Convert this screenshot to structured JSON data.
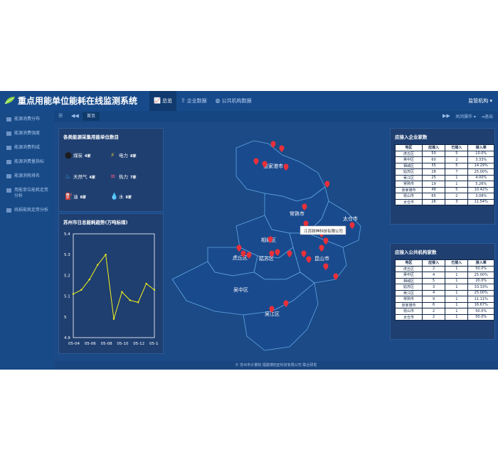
{
  "header": {
    "title": "重点用能单位能耗在线监测系统",
    "nav": [
      {
        "label": "总览",
        "icon": "chart-icon",
        "active": true
      },
      {
        "label": "企业数据",
        "icon": "upload-icon",
        "active": false
      },
      {
        "label": "公共机构数据",
        "icon": "globe-icon",
        "active": false
      }
    ],
    "user_label": "监管机构"
  },
  "sidebar": {
    "items": [
      {
        "label": "能源消费分布"
      },
      {
        "label": "能源消费强度"
      },
      {
        "label": "能源消费构成"
      },
      {
        "label": "能源消费量指标"
      },
      {
        "label": "能源消耗排名"
      },
      {
        "label": "用能单位能耗走势分析"
      },
      {
        "label": "线损能耗走势分析"
      }
    ]
  },
  "toolbar": {
    "home_tab": "首页",
    "close_ops": "关闭操作",
    "logout": "退出"
  },
  "energy_panel": {
    "title": "各类能源采集用能单位数目",
    "items": [
      {
        "name": "煤炭",
        "count": "4家",
        "icon": "coal-icon"
      },
      {
        "name": "电力",
        "count": "8家",
        "icon": "lightning-icon"
      },
      {
        "name": "天然气",
        "count": "4家",
        "icon": "gas-icon"
      },
      {
        "name": "热力",
        "count": "7家",
        "icon": "heat-icon"
      },
      {
        "name": "油",
        "count": "8家",
        "icon": "oil-icon"
      },
      {
        "name": "水",
        "count": "8家",
        "icon": "water-icon"
      }
    ]
  },
  "trend_panel": {
    "title": "苏州市日总能耗趋势(万吨标煤)"
  },
  "chart_data": {
    "type": "line",
    "title": "苏州市日总能耗趋势(万吨标煤)",
    "x": [
      "05-04",
      "05-05",
      "05-06",
      "05-07",
      "05-08",
      "05-09",
      "05-10",
      "05-11",
      "05-12",
      "05-13",
      "05-14"
    ],
    "series": [
      {
        "values": [
          5.11,
          5.13,
          5.18,
          5.25,
          5.3,
          4.99,
          5.12,
          5.08,
          5.07,
          5.16,
          5.13
        ]
      }
    ],
    "xticks": [
      "05-04",
      "05-06",
      "05-08",
      "05-10",
      "05-12",
      "05-14"
    ],
    "yticks": [
      "4.9",
      "5",
      "5.1",
      "5.2",
      "5.3",
      "5.4"
    ],
    "ylim": [
      4.9,
      5.4
    ],
    "line_color": "#f4f11c"
  },
  "enterprise_table": {
    "title": "应接入企业家数",
    "headers": [
      "地区",
      "应接入",
      "已接入",
      "接入率"
    ],
    "rows": [
      [
        "虎丘区",
        "50",
        "5",
        "10.0%"
      ],
      [
        "吴中区",
        "60",
        "2",
        "3.33%"
      ],
      [
        "相城区",
        "35",
        "5",
        "14.29%"
      ],
      [
        "姑苏区",
        "28",
        "7",
        "25.00%"
      ],
      [
        "吴江区",
        "25",
        "1",
        "4.00%"
      ],
      [
        "常熟市",
        "19",
        "1",
        "5.26%"
      ],
      [
        "张家港市",
        "48",
        "5",
        "10.42%"
      ],
      [
        "昆山市",
        "65",
        "2",
        "3.08%"
      ],
      [
        "太仓市",
        "26",
        "3",
        "11.54%"
      ]
    ]
  },
  "public_table": {
    "title": "应接入公共机构家数",
    "headers": [
      "地区",
      "应接入",
      "已接入",
      "接入率"
    ],
    "rows": [
      [
        "虎丘区",
        "2",
        "1",
        "50.0%"
      ],
      [
        "吴中区",
        "4",
        "1",
        "25.00%"
      ],
      [
        "相城区",
        "5",
        "1",
        "20.0%"
      ],
      [
        "姑苏区",
        "3",
        "1",
        "33.33%"
      ],
      [
        "吴江区",
        "4",
        "1",
        "25.00%"
      ],
      [
        "常熟市",
        "9",
        "1",
        "11.11%"
      ],
      [
        "张家港市",
        "6",
        "1",
        "16.67%"
      ],
      [
        "昆山市",
        "2",
        "1",
        "50.0%"
      ],
      [
        "太仓市",
        "2",
        "1",
        "50.0%"
      ]
    ]
  },
  "map": {
    "districts": [
      "张家港市",
      "常熟市",
      "太仓市",
      "相城区",
      "虎丘区",
      "姑苏区",
      "昆山市",
      "吴中区",
      "吴江区"
    ],
    "tooltip": "江苏财神科技有限公司",
    "marker_color": "#e8303a"
  },
  "footer": {
    "text": "© 苏州市计量院 福建博拓亚科技有限公司 联合研发"
  }
}
